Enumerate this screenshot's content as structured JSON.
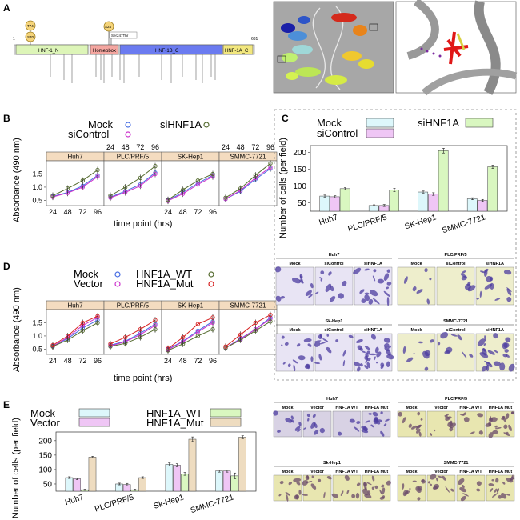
{
  "panel_labels": {
    "A": "A",
    "B": "B",
    "C": "C",
    "D": "D",
    "E": "E"
  },
  "panel_a": {
    "domain_start": "1",
    "domain_end": "631",
    "domains": [
      {
        "label": "HNF-1_N",
        "color": "#ddf5b8"
      },
      {
        "label": "Homeobox",
        "color": "#f4a6a0"
      },
      {
        "label": "HNF-1B_C",
        "color": "#6b7bf0"
      },
      {
        "label": "HNF-1A_C",
        "color": "#f2e77e"
      }
    ],
    "mutations": [
      {
        "label": "T74",
        "pos": 74
      },
      {
        "label": "S70",
        "pos": 70
      },
      {
        "label": "S24",
        "pos": 241
      },
      {
        "label": "Ser247Thr",
        "pos": 247
      }
    ]
  },
  "growth_b": {
    "legend": [
      {
        "label": "Mock",
        "color": "#4a6fe3"
      },
      {
        "label": "siControl",
        "color": "#cc33cc"
      },
      {
        "label": "siHNF1A",
        "color": "#556b2f"
      }
    ],
    "panels": [
      "Huh7",
      "PLC/PRF/5",
      "SK-Hep1",
      "SMMC-7721"
    ],
    "ylabel": "Absorbance (490 nm)",
    "xlabel": "time point (hrs)",
    "xticks": [
      "24",
      "48",
      "72",
      "96"
    ],
    "yticks": [
      "0.5",
      "1.0",
      "1.5"
    ]
  },
  "growth_d": {
    "legend": [
      {
        "label": "Mock",
        "color": "#4a6fe3"
      },
      {
        "label": "Vector",
        "color": "#cc33cc"
      },
      {
        "label": "HNF1A_WT",
        "color": "#556b2f"
      },
      {
        "label": "HNF1A_Mut",
        "color": "#d62020"
      }
    ],
    "panels": [
      "Huh7",
      "PLC/PRF/5",
      "SK-Hep1",
      "SMMC-7721"
    ],
    "ylabel": "Absorbance (490 nm)",
    "xlabel": "time point (hrs)",
    "xticks": [
      "24",
      "48",
      "72",
      "96"
    ],
    "yticks": [
      "0.5",
      "1.0",
      "1.5"
    ]
  },
  "micro_c": {
    "groups": [
      {
        "title": "Huh7",
        "cols": [
          "Mock",
          "siControl",
          "siHNF1A"
        ]
      },
      {
        "title": "PLC/PRF/5",
        "cols": [
          "Mock",
          "siControl",
          "siHNF1A"
        ]
      },
      {
        "title": "Sk-Hep1",
        "cols": [
          "Mock",
          "siControl",
          "siHNF1A"
        ]
      },
      {
        "title": "SMMC-7721",
        "cols": [
          "Mock",
          "siControl",
          "siHNF1A"
        ]
      }
    ]
  },
  "micro_e": {
    "groups": [
      {
        "title": "Huh7",
        "cols": [
          "Mock",
          "Vector",
          "HNF1A WT",
          "HNF1A Mut"
        ]
      },
      {
        "title": "PLC/PRF/5",
        "cols": [
          "Mock",
          "Vector",
          "HNF1A WT",
          "HNF1A Mut"
        ]
      },
      {
        "title": "Sk-Hep1",
        "cols": [
          "Mock",
          "Vector",
          "HNF1A WT",
          "HNF1A Mut"
        ]
      },
      {
        "title": "SMMC-7721",
        "cols": [
          "Mock",
          "Vector",
          "HNF1A WT",
          "HNF1A Mut"
        ]
      }
    ]
  },
  "chart_data": [
    {
      "type": "line",
      "id": "B",
      "x": [
        24,
        48,
        72,
        96
      ],
      "ylim": [
        0.3,
        2.0
      ],
      "xlabel": "time point (hrs)",
      "ylabel": "Absorbance (490 nm)",
      "panels": [
        {
          "name": "Huh7",
          "series": [
            {
              "name": "Mock",
              "values": [
                0.65,
                0.8,
                1.05,
                1.45
              ]
            },
            {
              "name": "siControl",
              "values": [
                0.63,
                0.78,
                1.0,
                1.4
              ]
            },
            {
              "name": "siHNF1A",
              "values": [
                0.68,
                0.95,
                1.25,
                1.65
              ]
            }
          ]
        },
        {
          "name": "PLC/PRF/5",
          "series": [
            {
              "name": "Mock",
              "values": [
                0.62,
                0.85,
                1.1,
                1.55
              ]
            },
            {
              "name": "siControl",
              "values": [
                0.6,
                0.8,
                1.05,
                1.5
              ]
            },
            {
              "name": "siHNF1A",
              "values": [
                0.68,
                1.0,
                1.35,
                1.8
              ]
            }
          ]
        },
        {
          "name": "SK-Hep1",
          "series": [
            {
              "name": "Mock",
              "values": [
                0.5,
                0.8,
                1.15,
                1.45
              ]
            },
            {
              "name": "siControl",
              "values": [
                0.48,
                0.75,
                1.1,
                1.4
              ]
            },
            {
              "name": "siHNF1A",
              "values": [
                0.52,
                0.9,
                1.25,
                1.5
              ]
            }
          ]
        },
        {
          "name": "SMMC-7721",
          "series": [
            {
              "name": "Mock",
              "values": [
                0.55,
                0.85,
                1.3,
                1.7
              ]
            },
            {
              "name": "siControl",
              "values": [
                0.55,
                0.88,
                1.35,
                1.75
              ]
            },
            {
              "name": "siHNF1A",
              "values": [
                0.6,
                0.95,
                1.45,
                1.9
              ]
            }
          ]
        }
      ]
    },
    {
      "type": "bar",
      "id": "C",
      "categories": [
        "Huh7",
        "PLC/PRF/5",
        "SK-Hep1",
        "SMMC-7721"
      ],
      "series": [
        {
          "name": "Mock",
          "color": "#ddf7fb",
          "values": [
            70,
            42,
            82,
            62
          ]
        },
        {
          "name": "siControl",
          "color": "#efc6f5",
          "values": [
            68,
            42,
            76,
            57
          ]
        },
        {
          "name": "siHNF1A",
          "color": "#d9f7c0",
          "values": [
            92,
            88,
            205,
            157
          ]
        }
      ],
      "errors": [
        [
          3,
          2,
          3,
          3
        ],
        [
          3,
          3,
          4,
          3
        ],
        [
          3,
          5,
          7,
          5
        ]
      ],
      "ylabel": "Number of cells (per field)",
      "ylim": [
        25,
        220
      ],
      "yticks": [
        "50",
        "100",
        "150",
        "200"
      ]
    },
    {
      "type": "line",
      "id": "D",
      "x": [
        24,
        48,
        72,
        96
      ],
      "ylim": [
        0.3,
        2.0
      ],
      "xlabel": "time point (hrs)",
      "ylabel": "Absorbance (490 nm)",
      "panels": [
        {
          "name": "Huh7",
          "series": [
            {
              "name": "Mock",
              "values": [
                0.62,
                0.9,
                1.3,
                1.6
              ]
            },
            {
              "name": "Vector",
              "values": [
                0.6,
                0.95,
                1.4,
                1.7
              ]
            },
            {
              "name": "HNF1A_WT",
              "values": [
                0.6,
                0.85,
                1.2,
                1.5
              ]
            },
            {
              "name": "HNF1A_Mut",
              "values": [
                0.65,
                1.0,
                1.5,
                1.75
              ]
            }
          ]
        },
        {
          "name": "PLC/PRF/5",
          "series": [
            {
              "name": "Mock",
              "values": [
                0.65,
                0.8,
                1.1,
                1.45
              ]
            },
            {
              "name": "Vector",
              "values": [
                0.62,
                0.78,
                1.05,
                1.4
              ]
            },
            {
              "name": "HNF1A_WT",
              "values": [
                0.6,
                0.72,
                0.95,
                1.25
              ]
            },
            {
              "name": "HNF1A_Mut",
              "values": [
                0.7,
                0.95,
                1.25,
                1.6
              ]
            }
          ]
        },
        {
          "name": "SK-Hep1",
          "series": [
            {
              "name": "Mock",
              "values": [
                0.5,
                0.8,
                1.2,
                1.55
              ]
            },
            {
              "name": "Vector",
              "values": [
                0.48,
                0.78,
                1.15,
                1.5
              ]
            },
            {
              "name": "HNF1A_WT",
              "values": [
                0.45,
                0.7,
                1.0,
                1.25
              ]
            },
            {
              "name": "HNF1A_Mut",
              "values": [
                0.52,
                0.95,
                1.45,
                1.7
              ]
            }
          ]
        },
        {
          "name": "SMMC-7721",
          "series": [
            {
              "name": "Mock",
              "values": [
                0.55,
                0.9,
                1.25,
                1.7
              ]
            },
            {
              "name": "Vector",
              "values": [
                0.55,
                0.88,
                1.25,
                1.65
              ]
            },
            {
              "name": "HNF1A_WT",
              "values": [
                0.55,
                0.85,
                1.2,
                1.55
              ]
            },
            {
              "name": "HNF1A_Mut",
              "values": [
                0.6,
                1.05,
                1.5,
                1.8
              ]
            }
          ]
        }
      ]
    },
    {
      "type": "bar",
      "id": "E",
      "categories": [
        "Huh7",
        "PLC/PRF/5",
        "Sk-Hep1",
        "SMMC-7721"
      ],
      "series": [
        {
          "name": "Mock",
          "color": "#ddf7fb",
          "values": [
            72,
            50,
            118,
            95
          ]
        },
        {
          "name": "Vector",
          "color": "#efc6f5",
          "values": [
            68,
            48,
            115,
            95
          ]
        },
        {
          "name": "HNF1A_WT",
          "color": "#d9f7c0",
          "values": [
            30,
            30,
            85,
            78
          ]
        },
        {
          "name": "HNF1A_Mut",
          "color": "#eedcc0",
          "values": [
            143,
            72,
            205,
            212
          ]
        }
      ],
      "errors": [
        [
          3,
          3,
          5,
          4
        ],
        [
          3,
          4,
          5,
          4
        ],
        [
          2,
          2,
          5,
          10
        ],
        [
          3,
          3,
          8,
          5
        ]
      ],
      "ylabel": "Number of cells (per field)",
      "ylim": [
        25,
        230
      ],
      "yticks": [
        "50",
        "100",
        "150",
        "200"
      ]
    }
  ]
}
